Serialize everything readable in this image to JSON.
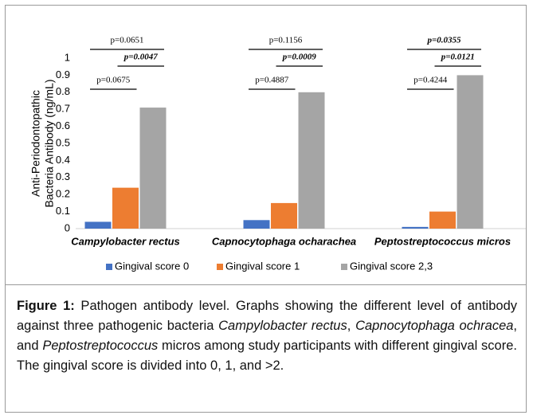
{
  "chart_data": {
    "type": "bar",
    "ylabel": [
      "Anti-Periodontopathic",
      "Bacteria Antibody (ng/mL)"
    ],
    "categories": [
      "Campylobacter rectus",
      "Capnocytophaga ocharachea",
      "Peptostreptococcus micros"
    ],
    "series": [
      {
        "name": "Gingival score 0",
        "color": "#4472c4",
        "values": [
          0.04,
          0.05,
          0.01
        ]
      },
      {
        "name": "Gingival score 1",
        "color": "#ed7d31",
        "values": [
          0.24,
          0.15,
          0.1
        ]
      },
      {
        "name": "Gingival score 2,3",
        "color": "#a5a5a5",
        "values": [
          0.71,
          0.8,
          0.9
        ]
      }
    ],
    "ylim": [
      0,
      1
    ],
    "yticks": [
      0,
      0.1,
      0.2,
      0.3,
      0.4,
      0.5,
      0.6,
      0.7,
      0.8,
      0.9,
      1
    ],
    "grid": false,
    "legend": "bottom",
    "annotations": [
      [
        {
          "text": "p=0.0651",
          "between": [
            0,
            2
          ],
          "emphasis": false
        },
        {
          "text": "p=0.0047",
          "between": [
            1,
            2
          ],
          "emphasis": true
        },
        {
          "text": "p=0.0675",
          "between": [
            0,
            1
          ],
          "emphasis": false
        }
      ],
      [
        {
          "text": "p=0.1156",
          "between": [
            0,
            2
          ],
          "emphasis": false
        },
        {
          "text": "p=0.0009",
          "between": [
            1,
            2
          ],
          "emphasis": true
        },
        {
          "text": "p=0.4887",
          "between": [
            0,
            1
          ],
          "emphasis": false
        }
      ],
      [
        {
          "text": "p=0.0355",
          "between": [
            0,
            2
          ],
          "emphasis": true
        },
        {
          "text": "p=0.0121",
          "between": [
            1,
            2
          ],
          "emphasis": true
        },
        {
          "text": "p=0.4244",
          "between": [
            0,
            1
          ],
          "emphasis": false
        }
      ]
    ]
  },
  "caption": {
    "label": "Figure 1:",
    "parts": [
      {
        "text": " Pathogen antibody level. Graphs showing the different level of antibody against three pathogenic bacteria ",
        "italic": false
      },
      {
        "text": "Campylobacter rectus",
        "italic": true
      },
      {
        "text": ", ",
        "italic": false
      },
      {
        "text": "Capnocytophaga ochracea",
        "italic": true
      },
      {
        "text": ", and ",
        "italic": false
      },
      {
        "text": "Peptostreptococcus",
        "italic": true
      },
      {
        "text": " micros among study participants with different gingival score. The gingival score is divided into 0, 1, and >2.",
        "italic": false
      }
    ]
  }
}
